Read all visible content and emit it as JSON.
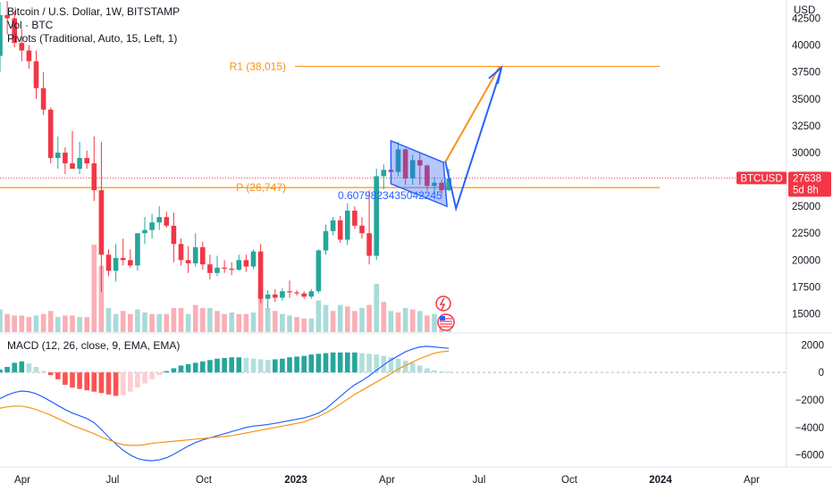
{
  "legend": {
    "title": "Bitcoin / U.S. Dollar, 1W, BITSTAMP",
    "volume": "Vol · BTC",
    "pivots": "Pivots (Traditional, Auto, 15, Left, 1)",
    "macd": "MACD (12, 26, close, 9, EMA, EMA)"
  },
  "currency_label": "USD",
  "price_badge": {
    "symbol": "BTCUSD",
    "price": "27638",
    "countdown": "5d 8h",
    "color": "#f23645"
  },
  "colors": {
    "up": "#26a69a",
    "down": "#f23645",
    "pivot": "#f7931a",
    "drawing": "#2962ff",
    "macd_line": "#2962ff",
    "signal_line": "#f7931a"
  },
  "icons": [
    "lightning-event-icon",
    "us-flag-event-icon"
  ],
  "chart_data": [
    {
      "type": "candlestick",
      "title": "Bitcoin / U.S. Dollar, 1W, BITSTAMP",
      "y_ticks": [
        42500,
        40000,
        37500,
        35000,
        32500,
        30000,
        27500,
        25000,
        22500,
        20000,
        17500,
        15000
      ],
      "y_range": [
        13300,
        44200
      ],
      "x_ticks": [
        "Apr",
        "Jul",
        "Oct",
        "2023",
        "Apr",
        "Jul",
        "Oct",
        "2024",
        "Apr"
      ],
      "current_price": 27638,
      "pivot_levels": [
        {
          "label": "R1 (38,015)",
          "value": 38015
        },
        {
          "label": "P (26,747)",
          "value": 26747
        }
      ],
      "annotation": "0.6079823435042245",
      "ohlc": [
        [
          39000,
          44000,
          37500,
          42800
        ],
        [
          42800,
          44100,
          41000,
          42500
        ],
        [
          42500,
          43200,
          39800,
          40200
        ],
        [
          40200,
          41500,
          38500,
          39500
        ],
        [
          39500,
          40000,
          37800,
          38500
        ],
        [
          38500,
          39500,
          35000,
          36000
        ],
        [
          36000,
          37500,
          33500,
          34000
        ],
        [
          34000,
          34200,
          29000,
          29500
        ],
        [
          29500,
          31500,
          28500,
          30000
        ],
        [
          30000,
          30500,
          28000,
          29000
        ],
        [
          29000,
          32000,
          28800,
          28500
        ],
        [
          28500,
          31000,
          28000,
          29500
        ],
        [
          29500,
          30200,
          28500,
          29000
        ],
        [
          29000,
          31500,
          25500,
          26500
        ],
        [
          26500,
          31000,
          17000,
          20500
        ],
        [
          20500,
          21000,
          18500,
          19000
        ],
        [
          19000,
          21500,
          18000,
          20200
        ],
        [
          20200,
          22000,
          19500,
          20000
        ],
        [
          20000,
          21000,
          19300,
          19500
        ],
        [
          19500,
          22500,
          19000,
          22500
        ],
        [
          22500,
          24000,
          21500,
          22800
        ],
        [
          22800,
          24300,
          22000,
          23500
        ],
        [
          23500,
          25000,
          22800,
          24000
        ],
        [
          24000,
          24500,
          23000,
          23200
        ],
        [
          23200,
          24400,
          19800,
          21500
        ],
        [
          21500,
          22000,
          19500,
          20000
        ],
        [
          20000,
          21300,
          18800,
          19700
        ],
        [
          19700,
          22500,
          19400,
          21200
        ],
        [
          21200,
          21700,
          19100,
          19600
        ],
        [
          19600,
          20500,
          18200,
          18800
        ],
        [
          18800,
          20400,
          18500,
          19300
        ],
        [
          19300,
          20000,
          18800,
          19200
        ],
        [
          19200,
          19800,
          18600,
          19100
        ],
        [
          19100,
          20500,
          19000,
          20000
        ],
        [
          20000,
          20500,
          18900,
          19400
        ],
        [
          19400,
          21000,
          19200,
          20800
        ],
        [
          20800,
          21500,
          16000,
          16400
        ],
        [
          16400,
          17200,
          15500,
          16800
        ],
        [
          16800,
          17300,
          16100,
          16500
        ],
        [
          16500,
          17400,
          16200,
          17100
        ],
        [
          17100,
          18100,
          16500,
          17000
        ],
        [
          17000,
          17200,
          16700,
          16900
        ],
        [
          16900,
          17100,
          16400,
          16600
        ],
        [
          16600,
          17300,
          16400,
          17100
        ],
        [
          17100,
          21000,
          16900,
          20900
        ],
        [
          20900,
          23300,
          20500,
          22700
        ],
        [
          22700,
          24000,
          22300,
          23700
        ],
        [
          23700,
          24100,
          21600,
          21900
        ],
        [
          21900,
          25300,
          21400,
          24600
        ],
        [
          24600,
          25000,
          22900,
          23200
        ],
        [
          23200,
          24000,
          22000,
          22500
        ],
        [
          22500,
          26500,
          19600,
          20400
        ],
        [
          20400,
          28500,
          20000,
          27800
        ],
        [
          27800,
          28900,
          26600,
          28400
        ],
        [
          28400,
          30500,
          27100,
          28200
        ],
        [
          28200,
          31000,
          27800,
          30300
        ],
        [
          30300,
          30400,
          27000,
          27600
        ],
        [
          27600,
          29800,
          27000,
          29300
        ],
        [
          29300,
          29900,
          27000,
          28800
        ],
        [
          28800,
          28900,
          26500,
          26900
        ],
        [
          26900,
          27700,
          25800,
          27200
        ],
        [
          27200,
          27500,
          26100,
          26500
        ],
        [
          26500,
          28500,
          26400,
          27600
        ]
      ],
      "volume": [
        [
          "up",
          7.5
        ],
        [
          "down",
          6
        ],
        [
          "down",
          5.5
        ],
        [
          "down",
          5.5
        ],
        [
          "down",
          5
        ],
        [
          "up",
          5.5
        ],
        [
          "down",
          6
        ],
        [
          "down",
          7
        ],
        [
          "up",
          5
        ],
        [
          "down",
          5.5
        ],
        [
          "down",
          5.5
        ],
        [
          "up",
          5
        ],
        [
          "down",
          5
        ],
        [
          "down",
          29
        ],
        [
          "down",
          22
        ],
        [
          "up",
          8
        ],
        [
          "up",
          6
        ],
        [
          "down",
          7
        ],
        [
          "down",
          6
        ],
        [
          "up",
          7.5
        ],
        [
          "up",
          6.5
        ],
        [
          "down",
          6
        ],
        [
          "up",
          6
        ],
        [
          "down",
          6
        ],
        [
          "down",
          8
        ],
        [
          "down",
          8
        ],
        [
          "up",
          6
        ],
        [
          "down",
          9
        ],
        [
          "down",
          8
        ],
        [
          "up",
          8
        ],
        [
          "down",
          7
        ],
        [
          "down",
          6
        ],
        [
          "up",
          6.5
        ],
        [
          "down",
          6
        ],
        [
          "down",
          6
        ],
        [
          "up",
          6.5
        ],
        [
          "down",
          14
        ],
        [
          "up",
          8
        ],
        [
          "down",
          7
        ],
        [
          "up",
          6
        ],
        [
          "up",
          5.5
        ],
        [
          "down",
          5
        ],
        [
          "down",
          4.5
        ],
        [
          "up",
          4.5
        ],
        [
          "up",
          10.5
        ],
        [
          "up",
          9
        ],
        [
          "down",
          7
        ],
        [
          "up",
          9
        ],
        [
          "down",
          8.5
        ],
        [
          "down",
          7
        ],
        [
          "up",
          8
        ],
        [
          "down",
          9
        ],
        [
          "up",
          16
        ],
        [
          "down",
          10
        ],
        [
          "up",
          7
        ],
        [
          "down",
          6.5
        ],
        [
          "up",
          8
        ],
        [
          "down",
          7.5
        ],
        [
          "up",
          7
        ],
        [
          "down",
          5.5
        ],
        [
          "up",
          6
        ],
        [
          "down",
          5
        ],
        [
          "up",
          5
        ]
      ],
      "volume_max": 29,
      "macd_range": [
        -6800,
        2800
      ],
      "macd_ticks": [
        2000,
        0,
        -2000,
        -4000,
        -6000
      ],
      "macd": [
        -1900,
        -1650,
        -1450,
        -1350,
        -1400,
        -1550,
        -1800,
        -2100,
        -2400,
        -2700,
        -2950,
        -3150,
        -3350,
        -3650,
        -4150,
        -4700,
        -5200,
        -5650,
        -6000,
        -6250,
        -6380,
        -6420,
        -6350,
        -6200,
        -5950,
        -5650,
        -5350,
        -5100,
        -4900,
        -4750,
        -4600,
        -4450,
        -4300,
        -4150,
        -4000,
        -3900,
        -3850,
        -3780,
        -3700,
        -3600,
        -3500,
        -3400,
        -3300,
        -3150,
        -2950,
        -2650,
        -2200,
        -1750,
        -1300,
        -900,
        -600,
        -250,
        150,
        550,
        900,
        1200,
        1500,
        1700,
        1850,
        1900,
        1850,
        1800,
        1750
      ],
      "signal": [
        -2600,
        -2500,
        -2450,
        -2450,
        -2550,
        -2700,
        -2900,
        -3100,
        -3350,
        -3600,
        -3850,
        -4050,
        -4250,
        -4450,
        -4700,
        -4900,
        -5100,
        -5250,
        -5300,
        -5300,
        -5250,
        -5150,
        -5100,
        -5050,
        -5000,
        -4950,
        -4900,
        -4850,
        -4800,
        -4750,
        -4700,
        -4650,
        -4600,
        -4500,
        -4400,
        -4300,
        -4200,
        -4100,
        -4000,
        -3900,
        -3800,
        -3700,
        -3600,
        -3400,
        -3200,
        -2950,
        -2650,
        -2300,
        -1950,
        -1600,
        -1300,
        -1000,
        -700,
        -400,
        -100,
        250,
        500,
        750,
        1000,
        1200,
        1400,
        1500,
        1550
      ],
      "hist": [
        200,
        400,
        700,
        800,
        650,
        400,
        100,
        -200,
        -500,
        -900,
        -1100,
        -1200,
        -1300,
        -1400,
        -1500,
        -1600,
        -1700,
        -1650,
        -1400,
        -1100,
        -800,
        -500,
        -200,
        100,
        300,
        500,
        600,
        700,
        800,
        900,
        1000,
        1050,
        1100,
        1100,
        1050,
        1000,
        950,
        900,
        950,
        1000,
        1100,
        1150,
        1200,
        1300,
        1350,
        1400,
        1450,
        1450,
        1450,
        1450,
        1400,
        1350,
        1300,
        1200,
        1100,
        1000,
        850,
        700,
        500,
        300,
        150,
        80,
        50
      ]
    }
  ]
}
